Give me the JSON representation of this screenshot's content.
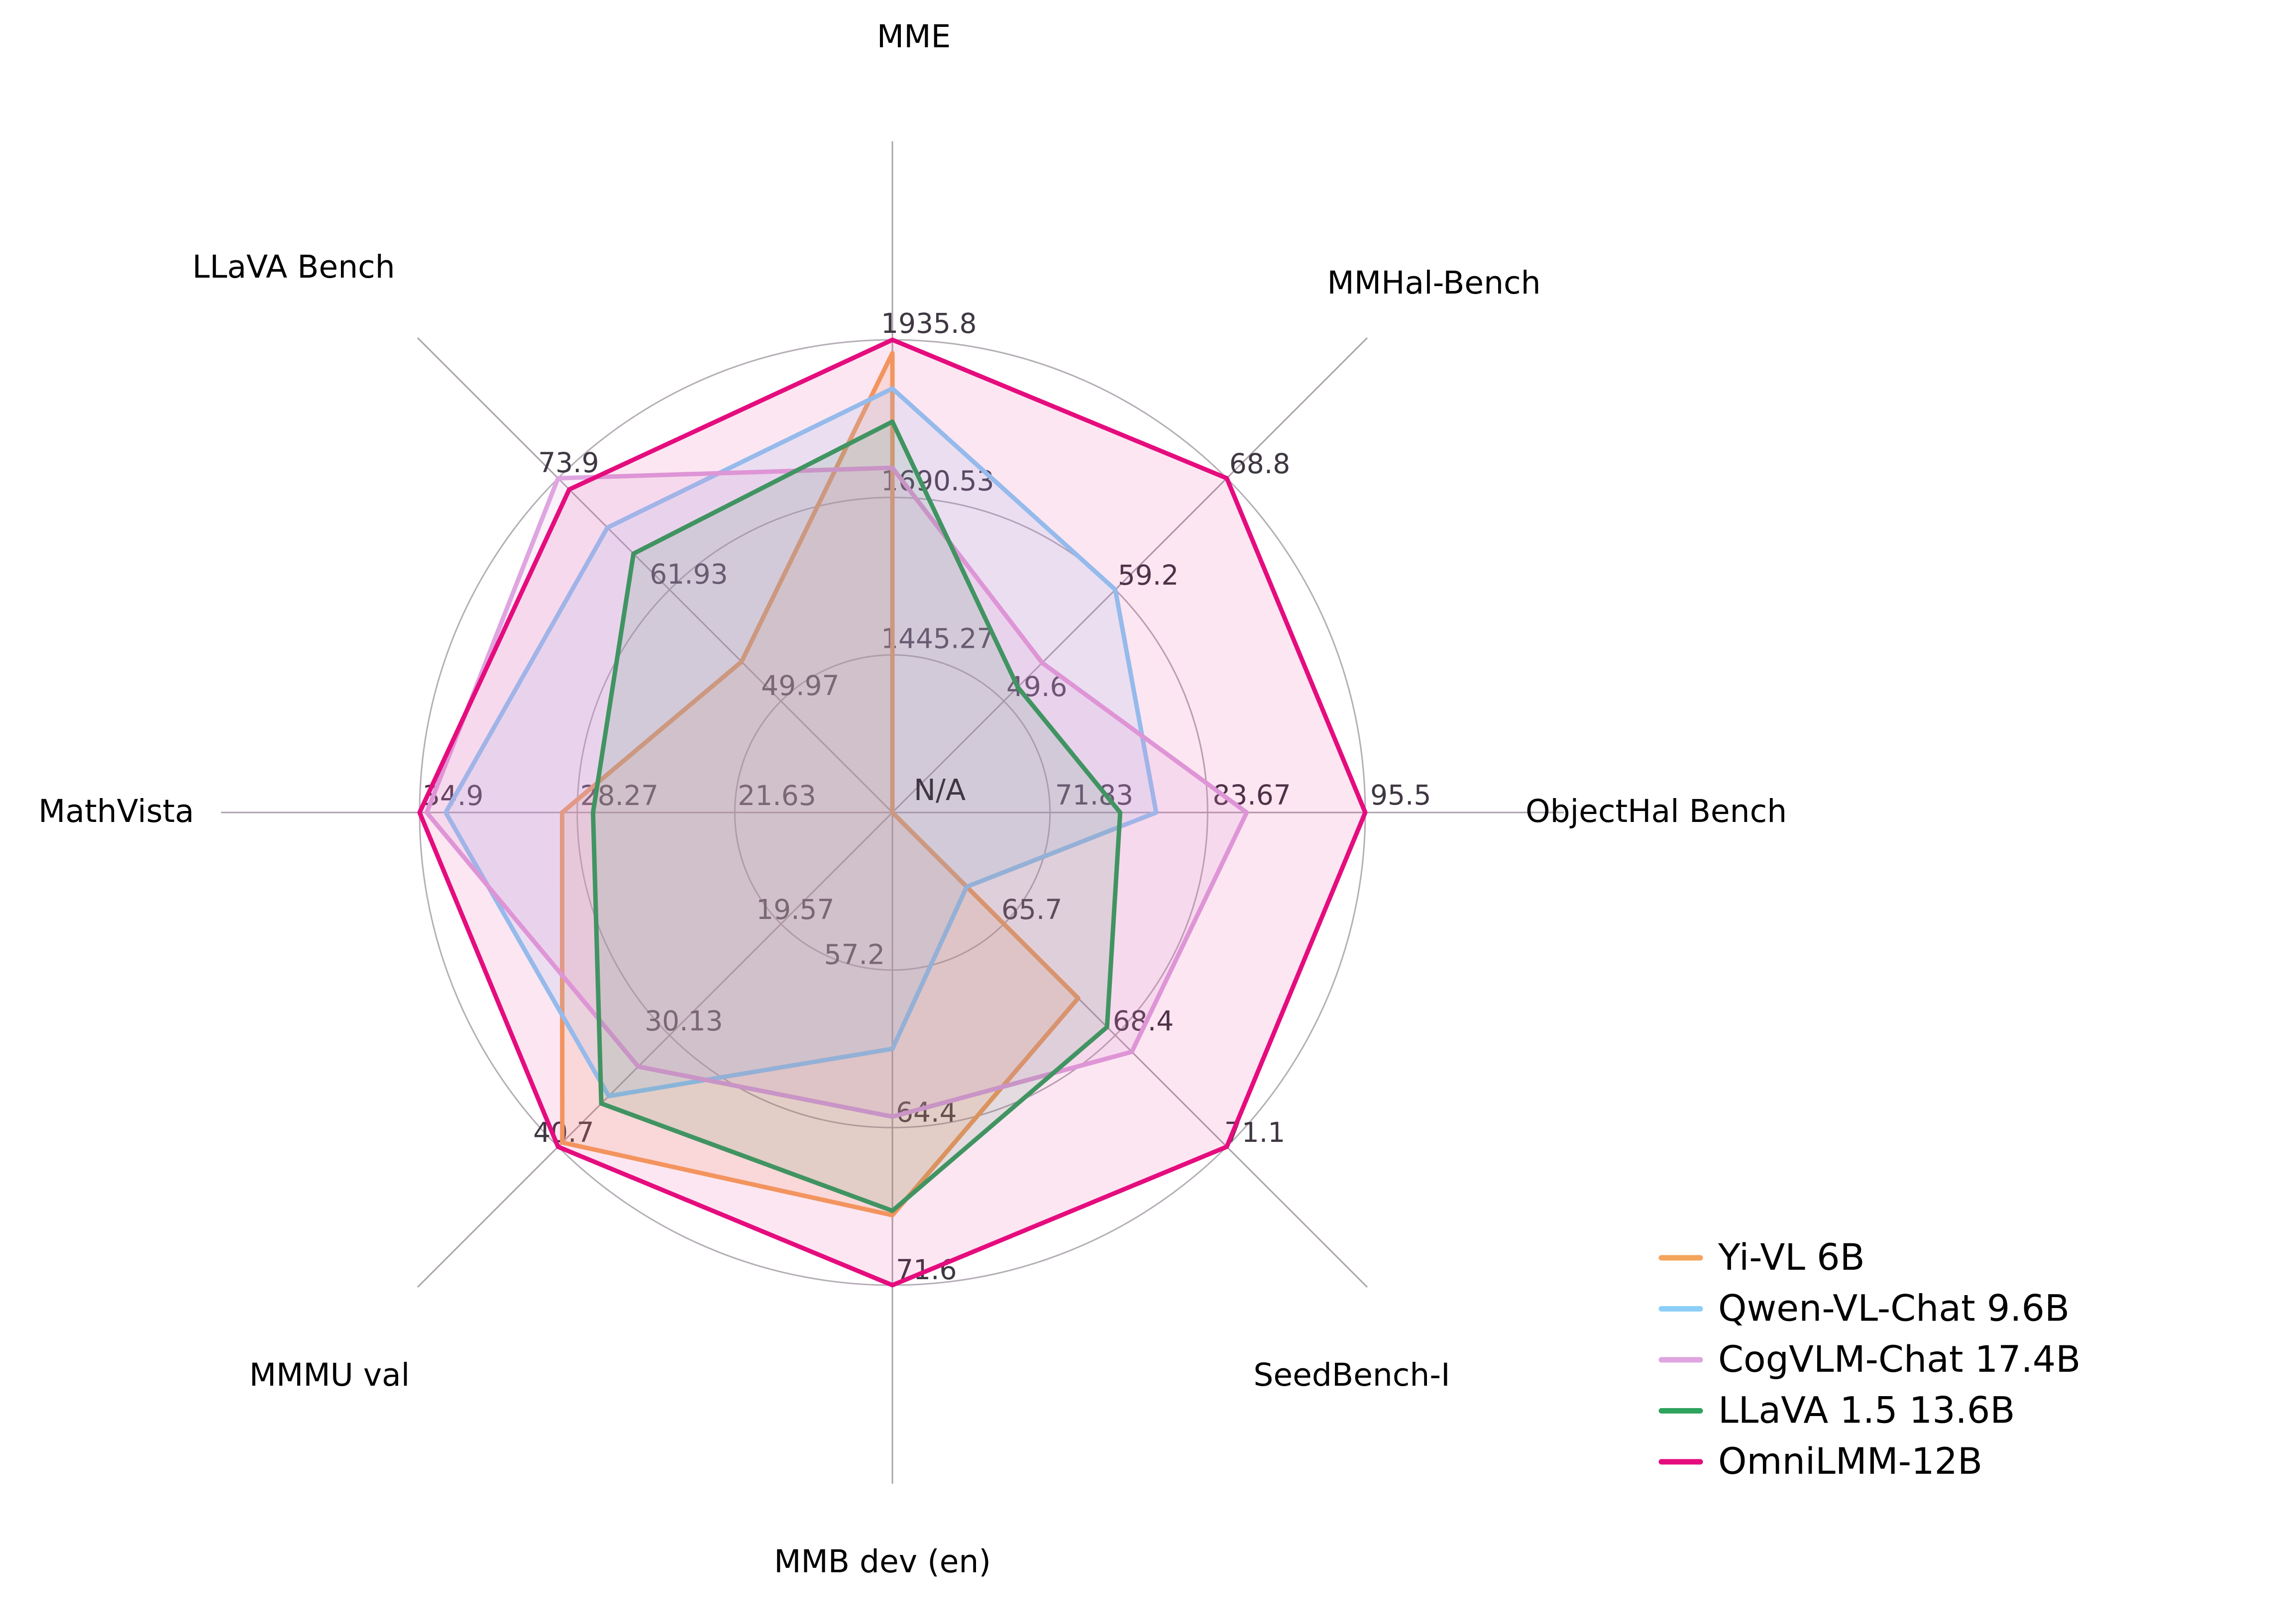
{
  "chart_data": {
    "type": "radar",
    "title": "",
    "center_label": "N/A",
    "grid": true,
    "legend_position": "bottom-right",
    "axes": [
      {
        "label": "MME",
        "min": 1200,
        "max": 1935.8,
        "ticks": [
          1445.27,
          1690.53,
          1935.8
        ]
      },
      {
        "label": "MMHal-Bench",
        "min": 40,
        "max": 68.8,
        "ticks": [
          49.6,
          59.2,
          68.8
        ]
      },
      {
        "label": "ObjectHal Bench",
        "min": 60,
        "max": 95.5,
        "ticks": [
          71.83,
          83.67,
          95.5
        ]
      },
      {
        "label": "SeedBench-I",
        "min": 63,
        "max": 71.1,
        "ticks": [
          65.7,
          68.4,
          71.1
        ]
      },
      {
        "label": "MMB dev (en)",
        "min": 50,
        "max": 71.6,
        "ticks": [
          57.2,
          64.4,
          71.6
        ]
      },
      {
        "label": "MMMU val",
        "min": 9,
        "max": 40.7,
        "ticks": [
          19.57,
          30.13,
          40.7
        ]
      },
      {
        "label": "MathVista",
        "min": 15,
        "max": 34.9,
        "ticks": [
          21.63,
          28.27,
          34.9
        ]
      },
      {
        "label": "LLaVA Bench",
        "min": 38,
        "max": 73.9,
        "ticks": [
          49.97,
          61.93,
          73.9
        ]
      }
    ],
    "series": [
      {
        "name": "Yi-VL 6B",
        "color": "#F5A45C",
        "fill_opacity": 0.18,
        "values": [
          1915.1,
          "N/A",
          "N/A",
          67.5,
          68.4,
          40.3,
          28.9,
          54.2
        ]
      },
      {
        "name": "Qwen-VL-Chat 9.6B",
        "color": "#8DCFF8",
        "fill_opacity": 0.17,
        "values": [
          1860.0,
          59.2,
          79.8,
          64.8,
          60.8,
          35.9,
          33.8,
          68.6
        ]
      },
      {
        "name": "CogVLM-Chat 17.4B",
        "color": "#DEA5E0",
        "fill_opacity": 0.16,
        "values": [
          1736.6,
          52.9,
          86.6,
          68.8,
          63.9,
          33.1,
          34.6,
          73.9
        ]
      },
      {
        "name": "LLaVA 1.5 13.6B",
        "color": "#2FA45F",
        "fill_opacity": 0.13,
        "values": [
          1808.4,
          50.8,
          77.1,
          68.2,
          68.2,
          36.6,
          27.6,
          65.8
        ]
      },
      {
        "name": "OmniLMM-12B",
        "color": "#E50C7E",
        "fill_opacity": 0.1,
        "values": [
          1935.8,
          68.8,
          95.5,
          71.1,
          71.6,
          40.7,
          34.9,
          72.7
        ]
      }
    ]
  }
}
